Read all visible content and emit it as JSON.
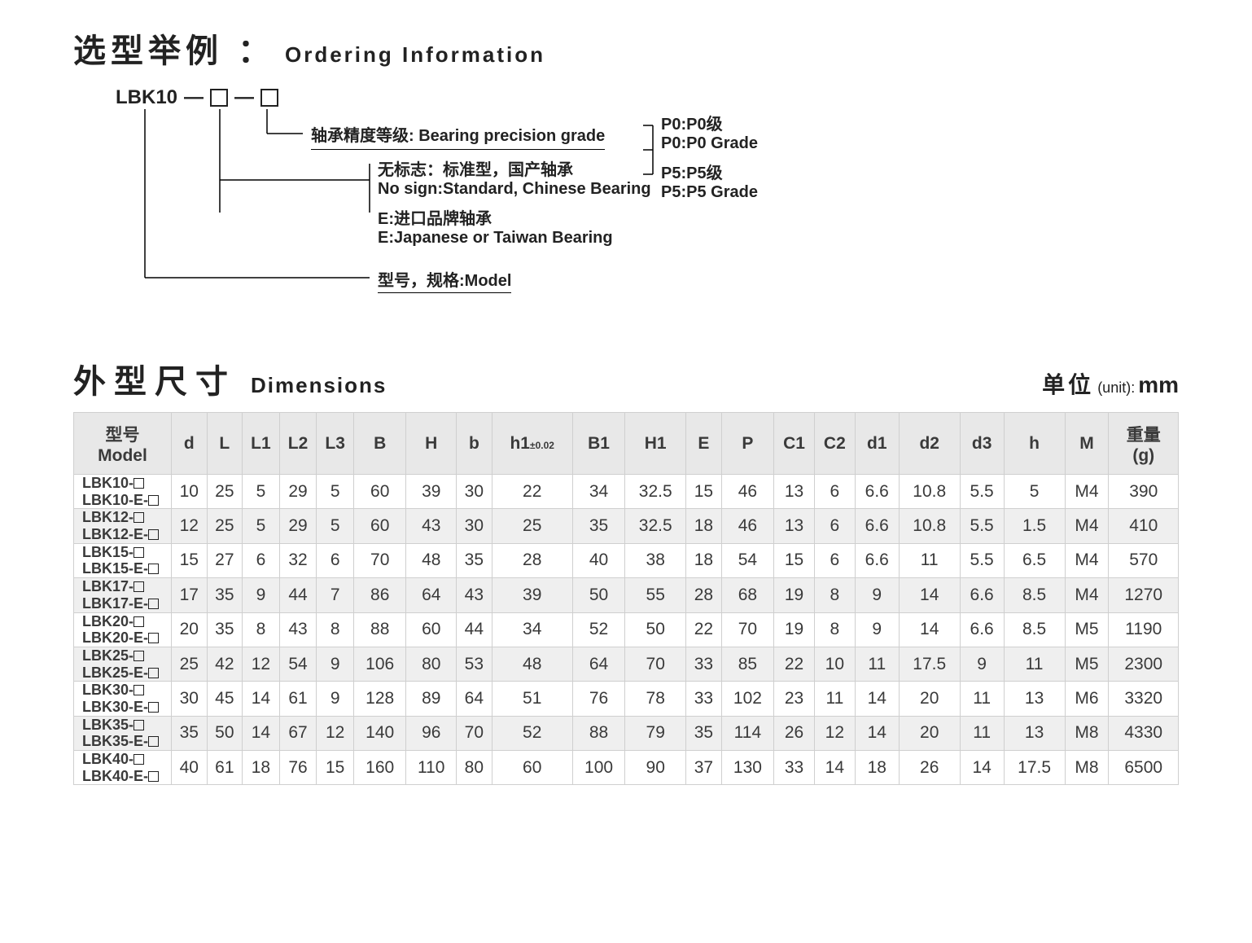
{
  "ordering": {
    "title_zh": "选型举例",
    "title_colon": "：",
    "title_en": "Ordering Information",
    "model_prefix": "LBK10",
    "dash": "—",
    "bearing_grade_label_zh": "轴承精度等级:",
    "bearing_grade_label_en": "Bearing precision grade",
    "p0_zh": "P0:P0级",
    "p0_en": "P0:P0 Grade",
    "p5_zh": "P5:P5级",
    "p5_en": "P5:P5 Grade",
    "std_zh": "无标志：标准型，国产轴承",
    "std_en": "No sign:Standard, Chinese Bearing",
    "e_zh": "E:进口品牌轴承",
    "e_en": "E:Japanese or Taiwan Bearing",
    "model_label": "型号，规格:Model"
  },
  "dimensions": {
    "title_zh": "外型尺寸",
    "title_en": "Dimensions",
    "unit_zh": "单位",
    "unit_paren": "(unit):",
    "unit_mm": "mm",
    "columns": [
      "型号\nModel",
      "d",
      "L",
      "L1",
      "L2",
      "L3",
      "B",
      "H",
      "b",
      "h1",
      "B1",
      "H1",
      "E",
      "P",
      "C1",
      "C2",
      "d1",
      "d2",
      "d3",
      "h",
      "M",
      "重量\n(g)"
    ],
    "h1_sup": "±0.02",
    "rows": [
      {
        "model1": "LBK10-",
        "model2": "LBK10-E-",
        "cells": [
          "10",
          "25",
          "5",
          "29",
          "5",
          "60",
          "39",
          "30",
          "22",
          "34",
          "32.5",
          "15",
          "46",
          "13",
          "6",
          "6.6",
          "10.8",
          "5.5",
          "5",
          "M4",
          "390"
        ]
      },
      {
        "model1": "LBK12-",
        "model2": "LBK12-E-",
        "cells": [
          "12",
          "25",
          "5",
          "29",
          "5",
          "60",
          "43",
          "30",
          "25",
          "35",
          "32.5",
          "18",
          "46",
          "13",
          "6",
          "6.6",
          "10.8",
          "5.5",
          "1.5",
          "M4",
          "410"
        ]
      },
      {
        "model1": "LBK15-",
        "model2": "LBK15-E-",
        "cells": [
          "15",
          "27",
          "6",
          "32",
          "6",
          "70",
          "48",
          "35",
          "28",
          "40",
          "38",
          "18",
          "54",
          "15",
          "6",
          "6.6",
          "11",
          "5.5",
          "6.5",
          "M4",
          "570"
        ]
      },
      {
        "model1": "LBK17-",
        "model2": "LBK17-E-",
        "cells": [
          "17",
          "35",
          "9",
          "44",
          "7",
          "86",
          "64",
          "43",
          "39",
          "50",
          "55",
          "28",
          "68",
          "19",
          "8",
          "9",
          "14",
          "6.6",
          "8.5",
          "M4",
          "1270"
        ]
      },
      {
        "model1": "LBK20-",
        "model2": "LBK20-E-",
        "cells": [
          "20",
          "35",
          "8",
          "43",
          "8",
          "88",
          "60",
          "44",
          "34",
          "52",
          "50",
          "22",
          "70",
          "19",
          "8",
          "9",
          "14",
          "6.6",
          "8.5",
          "M5",
          "1190"
        ]
      },
      {
        "model1": "LBK25-",
        "model2": "LBK25-E-",
        "cells": [
          "25",
          "42",
          "12",
          "54",
          "9",
          "106",
          "80",
          "53",
          "48",
          "64",
          "70",
          "33",
          "85",
          "22",
          "10",
          "11",
          "17.5",
          "9",
          "11",
          "M5",
          "2300"
        ]
      },
      {
        "model1": "LBK30-",
        "model2": "LBK30-E-",
        "cells": [
          "30",
          "45",
          "14",
          "61",
          "9",
          "128",
          "89",
          "64",
          "51",
          "76",
          "78",
          "33",
          "102",
          "23",
          "11",
          "14",
          "20",
          "11",
          "13",
          "M6",
          "3320"
        ]
      },
      {
        "model1": "LBK35-",
        "model2": "LBK35-E-",
        "cells": [
          "35",
          "50",
          "14",
          "67",
          "12",
          "140",
          "96",
          "70",
          "52",
          "88",
          "79",
          "35",
          "114",
          "26",
          "12",
          "14",
          "20",
          "11",
          "13",
          "M8",
          "4330"
        ]
      },
      {
        "model1": "LBK40-",
        "model2": "LBK40-E-",
        "cells": [
          "40",
          "61",
          "18",
          "76",
          "15",
          "160",
          "110",
          "80",
          "60",
          "100",
          "90",
          "37",
          "130",
          "33",
          "14",
          "18",
          "26",
          "14",
          "17.5",
          "M8",
          "6500"
        ]
      }
    ]
  }
}
